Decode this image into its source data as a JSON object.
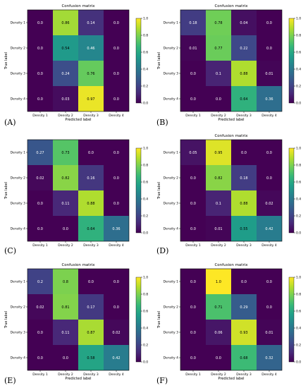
{
  "colormap": {
    "name": "viridis",
    "stops": [
      "#440154",
      "#482878",
      "#3e4989",
      "#31688e",
      "#26828e",
      "#1f9e89",
      "#35b779",
      "#6ece58",
      "#b5de2b",
      "#fde725"
    ]
  },
  "chart_data": [
    {
      "type": "heatmap",
      "panel_label": "(A)",
      "title": "Confusion matrix",
      "xlabel": "Predicted label",
      "ylabel": "True label",
      "categories": [
        "Density 1",
        "Density 2",
        "Density 3",
        "Density 4"
      ],
      "values": [
        [
          0.0,
          0.86,
          0.14,
          0.0
        ],
        [
          0.0,
          0.54,
          0.46,
          0.0
        ],
        [
          0.0,
          0.24,
          0.76,
          0.0
        ],
        [
          0.0,
          0.03,
          0.97,
          0.0
        ]
      ],
      "colorbar_range": [
        0.0,
        1.0
      ],
      "colorbar_ticks": [
        "0.0",
        "0.2",
        "0.4",
        "0.6",
        "0.8",
        "1.0"
      ],
      "cell_labels": [
        [
          "0.0",
          "0.86",
          "0.14",
          "0.0"
        ],
        [
          "0.0",
          "0.54",
          "0.46",
          "0.0"
        ],
        [
          "0.0",
          "0.24",
          "0.76",
          "0.0"
        ],
        [
          "0.0",
          "0.03",
          "0.97",
          "0.0"
        ]
      ]
    },
    {
      "type": "heatmap",
      "panel_label": "(B)",
      "title": "Confusion matrix",
      "xlabel": "Predicted label",
      "ylabel": "True label",
      "categories": [
        "Density 1",
        "Density 2",
        "Density 3",
        "Density 4"
      ],
      "values": [
        [
          0.18,
          0.78,
          0.04,
          0.0
        ],
        [
          0.01,
          0.77,
          0.22,
          0.0
        ],
        [
          0.0,
          0.1,
          0.88,
          0.01
        ],
        [
          0.0,
          0.0,
          0.64,
          0.36
        ]
      ],
      "colorbar_range": [
        0.0,
        1.0
      ],
      "colorbar_ticks": [
        "0.0",
        "0.2",
        "0.4",
        "0.6",
        "0.8",
        "1.0"
      ],
      "cell_labels": [
        [
          "0.18",
          "0.78",
          "0.04",
          "0.0"
        ],
        [
          "0.01",
          "0.77",
          "0.22",
          "0.0"
        ],
        [
          "0.0",
          "0.1",
          "0.88",
          "0.01"
        ],
        [
          "0.0",
          "0.0",
          "0.64",
          "0.36"
        ]
      ]
    },
    {
      "type": "heatmap",
      "panel_label": "(C)",
      "title": "",
      "xlabel": "",
      "ylabel": "True label",
      "categories": [
        "Density 1",
        "Density 2",
        "Density 3",
        "Density 4"
      ],
      "values": [
        [
          0.27,
          0.73,
          0.0,
          0.0
        ],
        [
          0.02,
          0.82,
          0.16,
          0.0
        ],
        [
          0.0,
          0.11,
          0.88,
          0.0
        ],
        [
          0.0,
          0.0,
          0.64,
          0.36
        ]
      ],
      "colorbar_range": [
        0.0,
        1.0
      ],
      "colorbar_ticks": [
        "0.0",
        "0.2",
        "0.4",
        "0.6",
        "0.8",
        "1.0"
      ],
      "cell_labels": [
        [
          "0.27",
          "0.73",
          "0.0",
          "0.0"
        ],
        [
          "0.02",
          "0.82",
          "0.16",
          "0.0"
        ],
        [
          "0.0",
          "0.11",
          "0.88",
          "0.0"
        ],
        [
          "0.0",
          "0.0",
          "0.64",
          "0.36"
        ]
      ]
    },
    {
      "type": "heatmap",
      "panel_label": "(D)",
      "title": "Confusion matrix",
      "xlabel": "",
      "ylabel": "True label",
      "categories": [
        "Density 1",
        "Density 2",
        "Density 3",
        "Density 4"
      ],
      "values": [
        [
          0.05,
          0.95,
          0.0,
          0.0
        ],
        [
          0.0,
          0.82,
          0.18,
          0.0
        ],
        [
          0.0,
          0.1,
          0.88,
          0.02
        ],
        [
          0.0,
          0.01,
          0.55,
          0.42
        ]
      ],
      "colorbar_range": [
        0.0,
        1.0
      ],
      "colorbar_ticks": [
        "0.0",
        "0.2",
        "0.4",
        "0.6",
        "0.8",
        "1.0"
      ],
      "cell_labels": [
        [
          "0.05",
          "0.95",
          "0.0",
          "0.0"
        ],
        [
          "0.0",
          "0.82",
          "0.18",
          "0.0"
        ],
        [
          "0.0",
          "0.1",
          "0.88",
          "0.02"
        ],
        [
          "0.0",
          "0.01",
          "0.55",
          "0.42"
        ]
      ]
    },
    {
      "type": "heatmap",
      "panel_label": "(E)",
      "title": "Confusion matrix",
      "xlabel": "Predicted label",
      "ylabel": "True label",
      "categories": [
        "Density 1",
        "Density 2",
        "Density 3",
        "Density 4"
      ],
      "values": [
        [
          0.2,
          0.8,
          0.0,
          0.0
        ],
        [
          0.02,
          0.81,
          0.17,
          0.0
        ],
        [
          0.0,
          0.11,
          0.87,
          0.02
        ],
        [
          0.0,
          0.0,
          0.58,
          0.42
        ]
      ],
      "colorbar_range": [
        0.0,
        1.0
      ],
      "colorbar_ticks": [
        "0.0",
        "0.2",
        "0.4",
        "0.6",
        "0.8",
        "1.0"
      ],
      "cell_labels": [
        [
          "0.2",
          "0.8",
          "0.0",
          "0.0"
        ],
        [
          "0.02",
          "0.81",
          "0.17",
          "0.0"
        ],
        [
          "0.0",
          "0.11",
          "0.87",
          "0.02"
        ],
        [
          "0.0",
          "0.0",
          "0.58",
          "0.42"
        ]
      ]
    },
    {
      "type": "heatmap",
      "panel_label": "(F)",
      "title": "Confusion matrix",
      "xlabel": "Predicted label",
      "ylabel": "True label",
      "categories": [
        "Density 1",
        "Density 2",
        "Density 3",
        "Density 4"
      ],
      "values": [
        [
          0.0,
          1.0,
          0.0,
          0.0
        ],
        [
          0.0,
          0.71,
          0.29,
          0.0
        ],
        [
          0.0,
          0.06,
          0.93,
          0.01
        ],
        [
          0.0,
          0.0,
          0.68,
          0.32
        ]
      ],
      "colorbar_range": [
        0.0,
        1.0
      ],
      "colorbar_ticks": [
        "0.0",
        "0.2",
        "0.4",
        "0.6",
        "0.8",
        "1.0"
      ],
      "cell_labels": [
        [
          "0.0",
          "1.0",
          "0.0",
          "0.0"
        ],
        [
          "0.0",
          "0.71",
          "0.29",
          "0.0"
        ],
        [
          "0.0",
          "0.06",
          "0.93",
          "0.01"
        ],
        [
          "0.0",
          "0.0",
          "0.68",
          "0.32"
        ]
      ]
    }
  ]
}
